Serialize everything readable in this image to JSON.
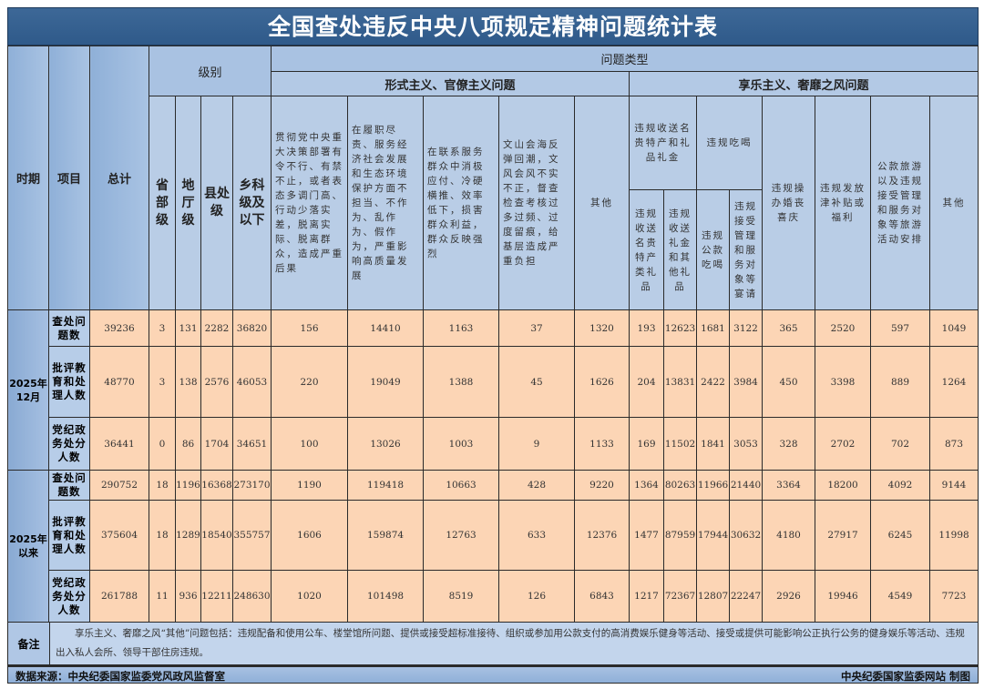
{
  "title": "全国查处违反中央八项规定精神问题统计表",
  "header": {
    "period": "时期",
    "item": "项目",
    "total": "总计",
    "level": "级别",
    "levels": [
      "省部级",
      "地厅级",
      "县处级",
      "乡科级及以下"
    ],
    "problem_type": "问题类型",
    "formalism": "形式主义、官僚主义问题",
    "formalism_cols": [
      "贯彻党中央重大决策部署有令不行、有禁不止，或者表态多调门高、行动少落实差，脱离实际、脱离群众，造成严重后果",
      "在履职尽责、服务经济社会发展和生态环境保护方面不担当、不作为、乱作为、假作为，严重影响高质量发展",
      "在联系服务群众中消极应付、冷硬横推、效率低下，损害群众利益，群众反映强烈",
      "文山会海反弹回潮，文风会风不实不正，督查检查考核过多过频、过度留痕，给基层造成严重负担",
      "其他"
    ],
    "hedonism": "享乐主义、奢靡之风问题",
    "gifts_group": "违规收送名贵特产和礼品礼金",
    "gifts_cols": [
      "违规收送名贵特产类礼品",
      "违规收送礼金和其他礼品"
    ],
    "dining_group": "违规吃喝",
    "dining_cols": [
      "违规公款吃喝",
      "违规接受管理和服务对象等宴请"
    ],
    "hedonism_cols": [
      "违规操办婚丧喜庆",
      "违规发放津补贴或福利",
      "公款旅游以及违规接受管理和服务对象等旅游活动安排",
      "其他"
    ]
  },
  "periods": [
    {
      "label": "2025年12月",
      "rows": [
        {
          "item": "查处问题数",
          "values": [
            39236,
            3,
            131,
            2282,
            36820,
            156,
            14410,
            1163,
            37,
            1320,
            193,
            12623,
            1681,
            3122,
            365,
            2520,
            597,
            1049
          ]
        },
        {
          "item": "批评教育和处理人数",
          "values": [
            48770,
            3,
            138,
            2576,
            46053,
            220,
            19049,
            1388,
            45,
            1626,
            204,
            13831,
            2422,
            3984,
            450,
            3398,
            889,
            1264
          ]
        },
        {
          "item": "党纪政务处分人数",
          "values": [
            36441,
            0,
            86,
            1704,
            34651,
            100,
            13026,
            1003,
            9,
            1133,
            169,
            11502,
            1841,
            3053,
            328,
            2702,
            702,
            873
          ]
        }
      ]
    },
    {
      "label": "2025年以来",
      "rows": [
        {
          "item": "查处问题数",
          "values": [
            290752,
            18,
            1196,
            16368,
            273170,
            1190,
            119418,
            10663,
            428,
            9220,
            1364,
            80263,
            11966,
            21440,
            3364,
            18200,
            4092,
            9144
          ]
        },
        {
          "item": "批评教育和处理人数",
          "values": [
            375604,
            18,
            1289,
            18540,
            355757,
            1606,
            159874,
            12763,
            633,
            12376,
            1477,
            87959,
            17944,
            30632,
            4180,
            27917,
            6245,
            11998
          ]
        },
        {
          "item": "党纪政务处分人数",
          "values": [
            261788,
            11,
            936,
            12211,
            248630,
            1020,
            101498,
            8519,
            126,
            6843,
            1217,
            72367,
            12807,
            22247,
            2926,
            19946,
            4549,
            7723
          ]
        }
      ]
    }
  ],
  "note": {
    "label": "备注",
    "text": "享乐主义、奢靡之风“其他”问题包括：违规配备和使用公车、楼堂馆所问题、提供或接受超标准接待、组织或参加用公款支付的高消费娱乐健身等活动、接受或提供可能影响公正执行公务的健身娱乐等活动、违规出入私人会所、领导干部住房违规。"
  },
  "footer": {
    "source": "数据来源：中央纪委国家监委党风政风监督室",
    "credit": "中央纪委国家监委网站 制图"
  },
  "colors": {
    "title_bg": "#3a6592",
    "header_bg": "#b9cde6",
    "cell_bg": "#fcd5b5",
    "border": "#2a2a2a"
  }
}
